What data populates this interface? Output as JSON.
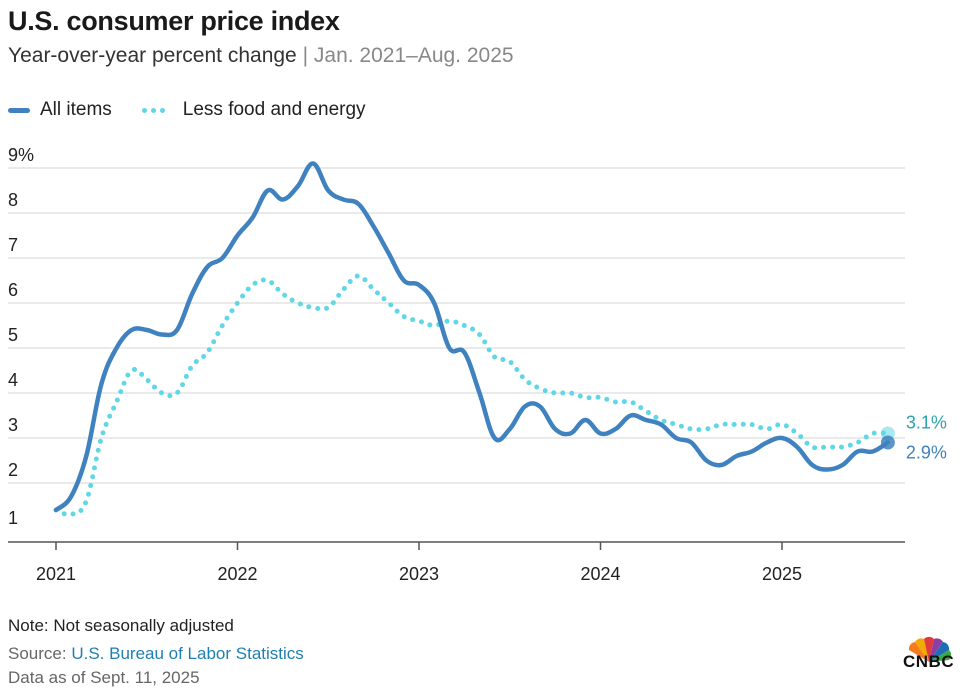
{
  "header": {
    "title": "U.S. consumer price index",
    "subtitle_main": "Year-over-year percent change",
    "subtitle_sep": "|",
    "subtitle_range": "Jan. 2021–Aug. 2025"
  },
  "legend": {
    "items": [
      "All items",
      "Less food and energy"
    ]
  },
  "footer": {
    "note": "Note: Not seasonally adjusted",
    "source_prefix": "Source:",
    "source_link": "U.S. Bureau of Labor Statistics",
    "data_as_of": "Data as of Sept. 11, 2025"
  },
  "logo": {
    "text": "CNBC",
    "icon": "peacock-logo-icon"
  },
  "colors": {
    "all_items": "#3f82bf",
    "core": "#5fd7e6",
    "grid": "#d6d6d6",
    "label_all": "#3f82bf",
    "label_core": "#2aa4ad"
  },
  "chart_data": {
    "type": "line",
    "title": "U.S. consumer price index",
    "subtitle": "Year-over-year percent change | Jan. 2021–Aug. 2025",
    "xlabel": "",
    "ylabel": "",
    "ylim": [
      1,
      9
    ],
    "yticks": [
      "1",
      "2",
      "3",
      "4",
      "5",
      "6",
      "7",
      "8",
      "9%"
    ],
    "xticks": [
      "2021",
      "2022",
      "2023",
      "2024",
      "2025"
    ],
    "grid": true,
    "legend_position": "top-left",
    "x": [
      "2021-01",
      "2021-02",
      "2021-03",
      "2021-04",
      "2021-05",
      "2021-06",
      "2021-07",
      "2021-08",
      "2021-09",
      "2021-10",
      "2021-11",
      "2021-12",
      "2022-01",
      "2022-02",
      "2022-03",
      "2022-04",
      "2022-05",
      "2022-06",
      "2022-07",
      "2022-08",
      "2022-09",
      "2022-10",
      "2022-11",
      "2022-12",
      "2023-01",
      "2023-02",
      "2023-03",
      "2023-04",
      "2023-05",
      "2023-06",
      "2023-07",
      "2023-08",
      "2023-09",
      "2023-10",
      "2023-11",
      "2023-12",
      "2024-01",
      "2024-02",
      "2024-03",
      "2024-04",
      "2024-05",
      "2024-06",
      "2024-07",
      "2024-08",
      "2024-09",
      "2024-10",
      "2024-11",
      "2024-12",
      "2025-01",
      "2025-02",
      "2025-03",
      "2025-04",
      "2025-05",
      "2025-06",
      "2025-07",
      "2025-08"
    ],
    "series": [
      {
        "name": "All items",
        "style": "solid",
        "values": [
          1.4,
          1.7,
          2.6,
          4.2,
          5.0,
          5.4,
          5.4,
          5.3,
          5.4,
          6.2,
          6.8,
          7.0,
          7.5,
          7.9,
          8.5,
          8.3,
          8.6,
          9.1,
          8.5,
          8.3,
          8.2,
          7.7,
          7.1,
          6.5,
          6.4,
          6.0,
          5.0,
          4.9,
          4.0,
          3.0,
          3.2,
          3.7,
          3.7,
          3.2,
          3.1,
          3.4,
          3.1,
          3.2,
          3.5,
          3.4,
          3.3,
          3.0,
          2.9,
          2.5,
          2.4,
          2.6,
          2.7,
          2.9,
          3.0,
          2.8,
          2.4,
          2.3,
          2.4,
          2.7,
          2.7,
          2.9
        ]
      },
      {
        "name": "Less food and energy",
        "style": "dotted",
        "values": [
          1.4,
          1.3,
          1.6,
          3.0,
          3.8,
          4.5,
          4.3,
          4.0,
          4.0,
          4.6,
          4.9,
          5.5,
          6.0,
          6.4,
          6.5,
          6.2,
          6.0,
          5.9,
          5.9,
          6.3,
          6.6,
          6.3,
          6.0,
          5.7,
          5.6,
          5.5,
          5.6,
          5.5,
          5.3,
          4.8,
          4.7,
          4.3,
          4.1,
          4.0,
          4.0,
          3.9,
          3.9,
          3.8,
          3.8,
          3.6,
          3.4,
          3.3,
          3.2,
          3.2,
          3.3,
          3.3,
          3.3,
          3.2,
          3.3,
          3.1,
          2.8,
          2.8,
          2.8,
          2.9,
          3.1,
          3.1
        ]
      }
    ],
    "end_labels": [
      {
        "series": "Less food and energy",
        "text": "3.1%"
      },
      {
        "series": "All items",
        "text": "2.9%"
      }
    ]
  }
}
